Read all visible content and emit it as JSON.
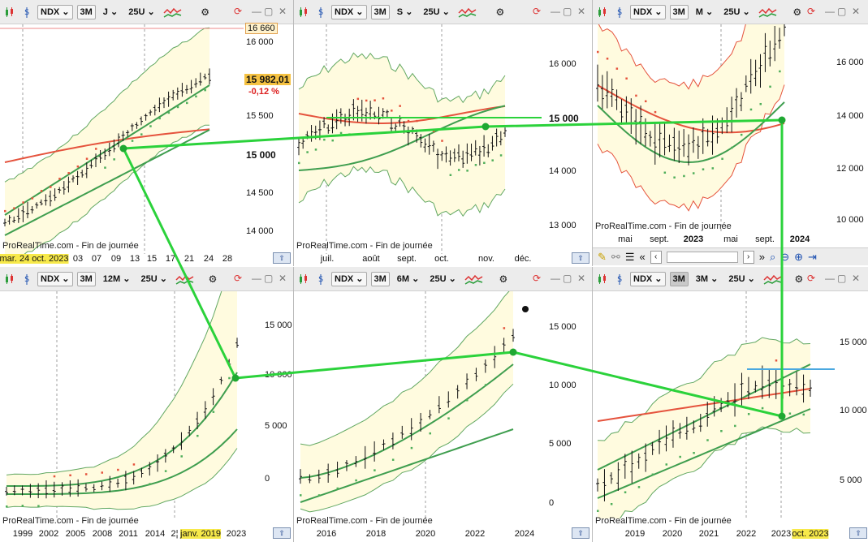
{
  "colors": {
    "band_fill": "#fffbdf",
    "band_edge": "#62a862",
    "ma_red": "#e5533d",
    "ma_green": "#3f9e4f",
    "dots_red": "#e5533d",
    "dots_green": "#4fae5a",
    "arrow": "#2bd23b",
    "hline": "#2bd23b",
    "hline_blue": "#4aa8e0"
  },
  "common": {
    "footer": "ProRealTime.com - Fin de journée",
    "scroll_icon": "scroll-to-end-icon"
  },
  "panes": [
    {
      "id": "daily",
      "symbol": "NDX",
      "period_btn": "3M",
      "timeframe": "J",
      "units": "25U",
      "y_ticks": [
        "16 000",
        "15 500",
        "15 000",
        "14 500",
        "14 000"
      ],
      "x_ticks": [
        "03",
        "07",
        "09",
        "13",
        "15",
        "17",
        "21",
        "24",
        "28"
      ],
      "x_highlight": "mar. 24 oct. 2023",
      "price_tag": "15 982,01",
      "change_tag": "-0,12 %",
      "high_tag": "16 660",
      "bold_level": "15 000"
    },
    {
      "id": "weekly",
      "symbol": "NDX",
      "period_btn": "3M",
      "timeframe": "S",
      "units": "25U",
      "y_ticks": [
        "16 000",
        "15 000",
        "14 000",
        "13 000"
      ],
      "x_ticks": [
        "juil.",
        "août",
        "sept.",
        "oct.",
        "nov.",
        "déc."
      ],
      "bold_level": "15 000"
    },
    {
      "id": "monthly",
      "symbol": "NDX",
      "period_btn": "3M",
      "timeframe": "M",
      "units": "25U",
      "y_ticks": [
        "16 000",
        "14 000",
        "12 000",
        "10 000"
      ],
      "x_ticks": [
        "mai",
        "sept.",
        "2023",
        "mai",
        "sept.",
        "2024"
      ]
    },
    {
      "id": "yearly",
      "symbol": "NDX",
      "period_btn": "3M",
      "timeframe": "12M",
      "units": "25U",
      "y_ticks": [
        "15 000",
        "10 000",
        "5 000",
        "0"
      ],
      "x_ticks": [
        "1999",
        "2002",
        "2005",
        "2008",
        "2011",
        "2014",
        "2¦",
        "2023"
      ],
      "x_highlight": "janv. 2019"
    },
    {
      "id": "semiannual",
      "symbol": "NDX",
      "period_btn": "3M",
      "timeframe": "6M",
      "units": "25U",
      "y_ticks": [
        "15 000",
        "10 000",
        "5 000",
        "0"
      ],
      "x_ticks": [
        "2016",
        "2018",
        "2020",
        "2022",
        "2024"
      ]
    },
    {
      "id": "quarterly",
      "symbol": "NDX",
      "period_btn": "3M",
      "timeframe": "3M",
      "units": "25U",
      "y_ticks": [
        "15 000",
        "10 000",
        "5 000"
      ],
      "x_ticks": [
        "2019",
        "2020",
        "2021",
        "2022",
        "2023"
      ],
      "x_highlight": "oct. 2023"
    }
  ]
}
